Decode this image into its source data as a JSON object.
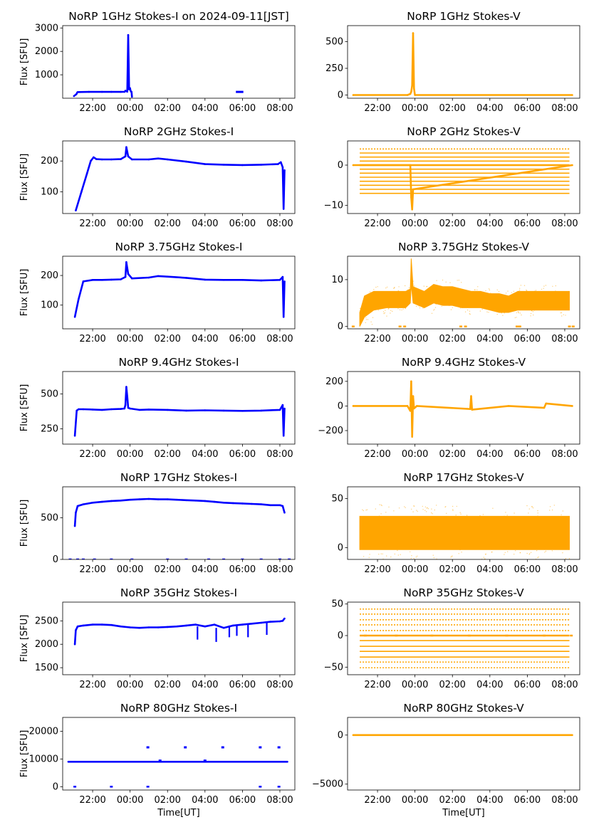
{
  "chart_data": [
    {
      "type": "scatter",
      "title": "NoRP 1GHz Stokes-I on 2024-09-11[JST]",
      "ylabel": "Flux [SFU]",
      "xlabel": "",
      "color": "#0000ff",
      "yrange": [
        0,
        3100
      ],
      "yticks": [
        1000,
        2000,
        3000
      ],
      "x_hours": [
        21,
        21.13,
        21.17,
        21.2,
        21.3,
        21.8,
        22.5,
        23,
        23.5,
        23.7,
        23.75,
        23.8,
        23.85,
        23.9,
        23.95,
        24.0,
        24.02,
        24.05,
        24.08,
        24.1
      ],
      "values": [
        90,
        170,
        230,
        260,
        265,
        270,
        270,
        272,
        270,
        275,
        320,
        300,
        280,
        2700,
        380,
        430,
        330,
        280,
        270,
        60
      ],
      "segments": [
        {
          "start": 29.65,
          "end": 30.05,
          "value": 270
        }
      ]
    },
    {
      "type": "scatter",
      "title": "NoRP 1GHz Stokes-V",
      "ylabel": "",
      "xlabel": "",
      "color": "#ffa500",
      "yrange": [
        -30,
        650
      ],
      "yticks": [
        0,
        250,
        500
      ],
      "x_hours": [
        20.7,
        23.6,
        23.75,
        23.8,
        23.85,
        23.9,
        23.95,
        24,
        32.4
      ],
      "values": [
        0,
        0,
        10,
        30,
        90,
        580,
        60,
        0,
        0
      ]
    },
    {
      "type": "scatter",
      "title": "NoRP 2GHz Stokes-I",
      "ylabel": "Flux [SFU]",
      "xlabel": "",
      "color": "#0000ff",
      "yrange": [
        30,
        265
      ],
      "yticks": [
        100,
        200
      ],
      "x_hours": [
        21.1,
        21.4,
        21.7,
        21.9,
        22.05,
        22.2,
        22.5,
        23,
        23.5,
        23.75,
        23.8,
        23.9,
        24.1,
        25,
        25.5,
        26,
        27,
        28,
        29,
        30,
        31,
        31.9,
        32.05,
        32.15,
        32.2,
        32.25
      ],
      "values": [
        40,
        100,
        160,
        200,
        212,
        206,
        205,
        205,
        206,
        215,
        245,
        215,
        205,
        205,
        208,
        205,
        198,
        190,
        188,
        187,
        188,
        190,
        196,
        180,
        45,
        170
      ]
    },
    {
      "type": "scatter",
      "title": "NoRP 2GHz Stokes-V",
      "ylabel": "",
      "xlabel": "",
      "color": "#ffa500",
      "yrange": [
        -12,
        6
      ],
      "yticks": [
        -10,
        0
      ],
      "levels": [
        4,
        3,
        2,
        1,
        0,
        -1,
        -2,
        -3,
        -4,
        -5,
        -6,
        -7
      ],
      "x_hours": [
        20.7,
        23.75,
        23.8,
        23.85,
        23.9,
        32.4
      ],
      "values": [
        0,
        0,
        -8,
        -11,
        -6,
        0
      ]
    },
    {
      "type": "scatter",
      "title": "NoRP 3.75GHz Stokes-I",
      "ylabel": "Flux [SFU]",
      "xlabel": "",
      "color": "#0000ff",
      "yrange": [
        20,
        265
      ],
      "yticks": [
        100,
        200
      ],
      "x_hours": [
        21.05,
        21.25,
        21.5,
        22,
        22.5,
        23,
        23.5,
        23.75,
        23.8,
        23.9,
        24.1,
        25,
        25.5,
        26,
        27,
        28,
        29,
        30,
        31,
        32,
        32.15,
        32.2,
        32.25
      ],
      "values": [
        60,
        120,
        180,
        185,
        185,
        186,
        187,
        195,
        245,
        205,
        190,
        193,
        198,
        196,
        192,
        186,
        185,
        185,
        183,
        185,
        195,
        60,
        180
      ]
    },
    {
      "type": "scatter",
      "title": "NoRP 3.75GHz Stokes-V",
      "ylabel": "",
      "xlabel": "",
      "color": "#ffa500",
      "yrange": [
        -0.5,
        15
      ],
      "yticks": [
        0,
        10
      ],
      "band_x": [
        21.05,
        21.3,
        21.8,
        22.5,
        23,
        23.5,
        23.75,
        23.8,
        23.9,
        24.5,
        25,
        25.5,
        26,
        26.5,
        27,
        27.5,
        28,
        28.5,
        29,
        29.5,
        30,
        30.5,
        31,
        31.5,
        32,
        32.25
      ],
      "band_low": [
        0,
        2,
        3.5,
        4,
        4,
        4,
        5,
        9,
        5,
        4,
        5,
        4.5,
        4.5,
        4,
        4,
        4,
        3.5,
        3,
        3,
        3.5,
        3.5,
        3.5,
        3.5,
        3.5,
        3.5,
        3.5
      ],
      "band_high": [
        3,
        6.5,
        7.5,
        7.5,
        7.5,
        7.5,
        8,
        14.5,
        8.5,
        7.5,
        9,
        8.5,
        8.5,
        8,
        7.5,
        7.5,
        7,
        7,
        6.5,
        7.5,
        7.5,
        7.5,
        7.5,
        7.5,
        7.5,
        7.5
      ],
      "zero_marks": [
        20.7,
        23.2,
        23.45,
        26.45,
        26.7,
        29.45,
        29.6,
        32.25,
        32.45
      ]
    },
    {
      "type": "scatter",
      "title": "NoRP 9.4GHz Stokes-I",
      "ylabel": "Flux [SFU]",
      "xlabel": "",
      "color": "#0000ff",
      "yrange": [
        140,
        660
      ],
      "yticks": [
        250,
        500
      ],
      "x_hours": [
        21.05,
        21.15,
        21.25,
        21.5,
        22,
        22.5,
        23,
        23.5,
        23.7,
        23.75,
        23.8,
        23.85,
        23.9,
        24,
        24.5,
        25,
        26,
        27,
        28,
        29,
        30,
        31,
        32,
        32.15,
        32.2,
        32.25
      ],
      "values": [
        200,
        380,
        390,
        390,
        388,
        385,
        390,
        392,
        395,
        420,
        550,
        480,
        400,
        395,
        385,
        388,
        385,
        380,
        382,
        380,
        378,
        380,
        385,
        420,
        200,
        395
      ]
    },
    {
      "type": "scatter",
      "title": "NoRP 9.4GHz Stokes-V",
      "ylabel": "",
      "xlabel": "",
      "color": "#ffa500",
      "yrange": [
        -310,
        280
      ],
      "yticks": [
        -200,
        0,
        200
      ],
      "x_hours": [
        20.7,
        23.6,
        23.75,
        23.8,
        23.85,
        23.9,
        23.95,
        24.1,
        26.95,
        27,
        27.05,
        29,
        30.9,
        31,
        32.4
      ],
      "values": [
        0,
        0,
        -40,
        200,
        -250,
        80,
        -20,
        0,
        -25,
        80,
        -30,
        0,
        -15,
        20,
        0
      ]
    },
    {
      "type": "scatter",
      "title": "NoRP 17GHz Stokes-I",
      "ylabel": "Flux [SFU]",
      "xlabel": "",
      "color": "#0000ff",
      "yrange": [
        0,
        870
      ],
      "yticks": [
        0,
        500
      ],
      "x_hours": [
        21.05,
        21.1,
        21.2,
        21.5,
        22,
        22.5,
        23,
        23.5,
        24,
        24.5,
        25,
        25.5,
        26,
        26.5,
        27,
        27.5,
        28,
        28.5,
        29,
        29.5,
        30,
        30.5,
        31,
        31.5,
        32,
        32.15,
        32.25
      ],
      "values": [
        400,
        560,
        640,
        660,
        680,
        690,
        700,
        705,
        715,
        720,
        725,
        720,
        720,
        715,
        710,
        705,
        700,
        690,
        680,
        675,
        670,
        665,
        660,
        650,
        650,
        640,
        560
      ],
      "zero_marks": [
        20.8,
        21.2,
        21.5,
        22.1,
        23,
        24.1,
        26,
        27,
        28.2,
        29,
        30,
        31,
        32,
        32.5
      ]
    },
    {
      "type": "scatter",
      "title": "NoRP 17GHz Stokes-V",
      "ylabel": "",
      "xlabel": "",
      "color": "#ffa500",
      "yrange": [
        -12,
        62
      ],
      "yticks": [
        0,
        50
      ],
      "band_x": [
        21.05,
        32.25
      ],
      "band_low": [
        -2,
        -2
      ],
      "band_high": [
        32,
        32
      ]
    },
    {
      "type": "scatter",
      "title": "NoRP 35GHz Stokes-I",
      "ylabel": "Flux [SFU]",
      "xlabel": "",
      "color": "#0000ff",
      "yrange": [
        1350,
        2900
      ],
      "yticks": [
        1500,
        2000,
        2500
      ],
      "x_hours": [
        21.05,
        21.1,
        21.2,
        21.5,
        22,
        22.5,
        23,
        23.5,
        24,
        24.5,
        25,
        25.5,
        26,
        26.5,
        27,
        27.5,
        28,
        28.5,
        29,
        29.5,
        30,
        30.5,
        31,
        31.5,
        32,
        32.15,
        32.25
      ],
      "values": [
        2000,
        2300,
        2380,
        2400,
        2420,
        2420,
        2410,
        2380,
        2360,
        2350,
        2360,
        2360,
        2370,
        2380,
        2400,
        2420,
        2380,
        2420,
        2350,
        2400,
        2420,
        2440,
        2460,
        2480,
        2490,
        2500,
        2550
      ],
      "dips": [
        {
          "x": 27.6,
          "low": 2100
        },
        {
          "x": 28.6,
          "low": 2050
        },
        {
          "x": 29.3,
          "low": 2150
        },
        {
          "x": 29.7,
          "low": 2180
        },
        {
          "x": 30.3,
          "low": 2150
        },
        {
          "x": 31.3,
          "low": 2200
        }
      ]
    },
    {
      "type": "scatter",
      "title": "NoRP 35GHz Stokes-V",
      "ylabel": "",
      "xlabel": "",
      "color": "#ffa500",
      "yrange": [
        -62,
        53
      ],
      "yticks": [
        -50,
        0,
        50
      ],
      "levels": [
        42,
        34,
        25,
        17,
        8,
        0,
        -8,
        -17,
        -25,
        -34,
        -42,
        -51
      ],
      "zero_marks": [
        21.35,
        23,
        24.9,
        26.9,
        28.9,
        30.9,
        32.35
      ]
    },
    {
      "type": "scatter",
      "title": "NoRP 80GHz Stokes-I",
      "ylabel": "Flux [SFU]",
      "xlabel": "Time[UT]",
      "color": "#0000ff",
      "yrange": [
        -1200,
        25000
      ],
      "yticks": [
        0,
        10000,
        20000
      ],
      "x_hours": [
        20.7,
        32.4
      ],
      "values": [
        9000,
        9000
      ],
      "bumps": [
        {
          "x": 24.95,
          "y": 14200
        },
        {
          "x": 26.95,
          "y": 14200
        },
        {
          "x": 28.95,
          "y": 14200
        },
        {
          "x": 30.95,
          "y": 14200
        },
        {
          "x": 31.95,
          "y": 14200
        },
        {
          "x": 25.6,
          "y": 9400
        },
        {
          "x": 28,
          "y": 9400
        }
      ],
      "zero_marks": [
        21.05,
        23,
        24.95,
        30.95,
        31.95
      ]
    },
    {
      "type": "scatter",
      "title": "NoRP 80GHz Stokes-V",
      "ylabel": "",
      "xlabel": "Time[UT]",
      "color": "#ffa500",
      "yrange": [
        -5600,
        1800
      ],
      "yticks": [
        -5000,
        0
      ],
      "x_hours": [
        20.7,
        32.4
      ],
      "values": [
        0,
        0
      ]
    }
  ],
  "x_axis": {
    "range_hours": [
      20.4,
      32.8
    ],
    "tick_hours": [
      22,
      24,
      26,
      28,
      30,
      32
    ],
    "tick_labels": [
      "22:00",
      "00:00",
      "02:00",
      "04:00",
      "06:00",
      "08:00"
    ]
  }
}
